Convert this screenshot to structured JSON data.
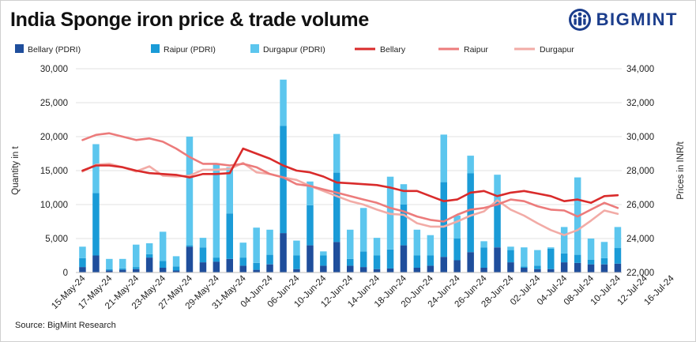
{
  "header": {
    "title": "India Sponge iron price & trade volume",
    "brand": "BIGMINT"
  },
  "footer": {
    "source": "Source: BigMint Research"
  },
  "chart_data": {
    "type": "bar",
    "stacked": true,
    "left_axis": {
      "label": "Quantity in t",
      "ylim": [
        0,
        30000
      ],
      "ticks": [
        "0",
        "5,000",
        "10,000",
        "15,000",
        "20,000",
        "25,000",
        "30,000"
      ]
    },
    "right_axis": {
      "label": "Prices in INR/t",
      "ylim": [
        22000,
        34000
      ],
      "ticks": [
        "22,000",
        "24,000",
        "26,000",
        "28,000",
        "30,000",
        "32,000",
        "34,000"
      ]
    },
    "x_tick_labels": [
      "15-May-24",
      "17-May-24",
      "21-May-24",
      "23-May-24",
      "27-May-24",
      "29-May-24",
      "31-May-24",
      "04-Jun-24",
      "06-Jun-24",
      "10-Jun-24",
      "12-Jun-24",
      "14-Jun-24",
      "18-Jun-24",
      "20-Jun-24",
      "24-Jun-24",
      "26-Jun-24",
      "28-Jun-24",
      "02-Jul-24",
      "04-Jul-24",
      "08-Jul-24",
      "10-Jul-24",
      "12-Jul-24",
      "16-Jul-24"
    ],
    "grid": true,
    "legend_position": "top",
    "colors": {
      "bellary_pdri": "#1f4e9c",
      "raipur_pdri": "#1a9bd7",
      "durgapur_pdri": "#5cc6ee",
      "bellary_price": "#d92b2b",
      "raipur_price": "#ec7b7b",
      "durgapur_price": "#f2aba6"
    },
    "bar_series": [
      {
        "name": "Bellary (PDRI)",
        "values": [
          800,
          2500,
          300,
          400,
          500,
          2200,
          700,
          300,
          3800,
          1500,
          1600,
          2000,
          1000,
          400,
          1200,
          5800,
          500,
          4000,
          1000,
          4500,
          1000,
          800,
          500,
          600,
          4000,
          700,
          1000,
          2300,
          1800,
          3000,
          700,
          3700,
          1500,
          700,
          500,
          500,
          1500,
          1400,
          1200,
          1200,
          1300
        ]
      },
      {
        "name": "Raipur (PDRI)",
        "values": [
          1300,
          9200,
          200,
          200,
          300,
          500,
          1000,
          600,
          200,
          2200,
          600,
          6700,
          1200,
          1000,
          1400,
          15800,
          2000,
          5900,
          1500,
          10200,
          1000,
          2300,
          2000,
          2800,
          6000,
          1800,
          1500,
          11000,
          3200,
          11600,
          3000,
          6900,
          1800,
          200,
          500,
          3000,
          1300,
          1200,
          700,
          900,
          2300
        ]
      },
      {
        "name": "Durgapur (PDRI)",
        "values": [
          1700,
          7200,
          1500,
          1400,
          3300,
          1600,
          4300,
          1500,
          16000,
          1400,
          13800,
          6800,
          2200,
          5200,
          3700,
          6800,
          2200,
          3500,
          600,
          5700,
          4300,
          6400,
          2600,
          10700,
          3000,
          3800,
          3000,
          7000,
          3400,
          2600,
          900,
          3800,
          500,
          2800,
          2300,
          200,
          3900,
          11400,
          3100,
          2400,
          3100
        ]
      }
    ],
    "line_series": [
      {
        "name": "Bellary",
        "values": [
          28000,
          28300,
          28300,
          28200,
          28000,
          27850,
          27800,
          27750,
          27600,
          27800,
          27800,
          27850,
          29300,
          29000,
          28700,
          28300,
          28000,
          27900,
          27650,
          27300,
          27250,
          27200,
          27150,
          27000,
          26800,
          26800,
          26500,
          26200,
          26300,
          26700,
          26800,
          26500,
          26700,
          26800,
          26650,
          26500,
          26200,
          26300,
          26100,
          26500,
          26550
        ]
      },
      {
        "name": "Raipur",
        "values": [
          29800,
          30100,
          30200,
          30000,
          29800,
          29900,
          29700,
          29300,
          28800,
          28400,
          28400,
          28300,
          28400,
          28200,
          27800,
          27600,
          27200,
          27100,
          26900,
          26700,
          26500,
          26300,
          26100,
          25800,
          25600,
          25300,
          25100,
          25000,
          25400,
          25700,
          25800,
          26000,
          26300,
          26200,
          25900,
          25700,
          25650,
          25300,
          25700,
          26100,
          25800
        ]
      },
      {
        "name": "Durgapur",
        "values": [
          27950,
          28350,
          28400,
          28200,
          27950,
          28250,
          27700,
          27650,
          27700,
          28050,
          28050,
          28100,
          28450,
          27900,
          27800,
          27600,
          27450,
          27100,
          26800,
          26500,
          26200,
          26000,
          25700,
          25450,
          25400,
          24900,
          24700,
          24700,
          25000,
          25350,
          25600,
          26250,
          25700,
          25350,
          24900,
          24500,
          24200,
          24500,
          25050,
          25650,
          25450
        ]
      }
    ]
  }
}
